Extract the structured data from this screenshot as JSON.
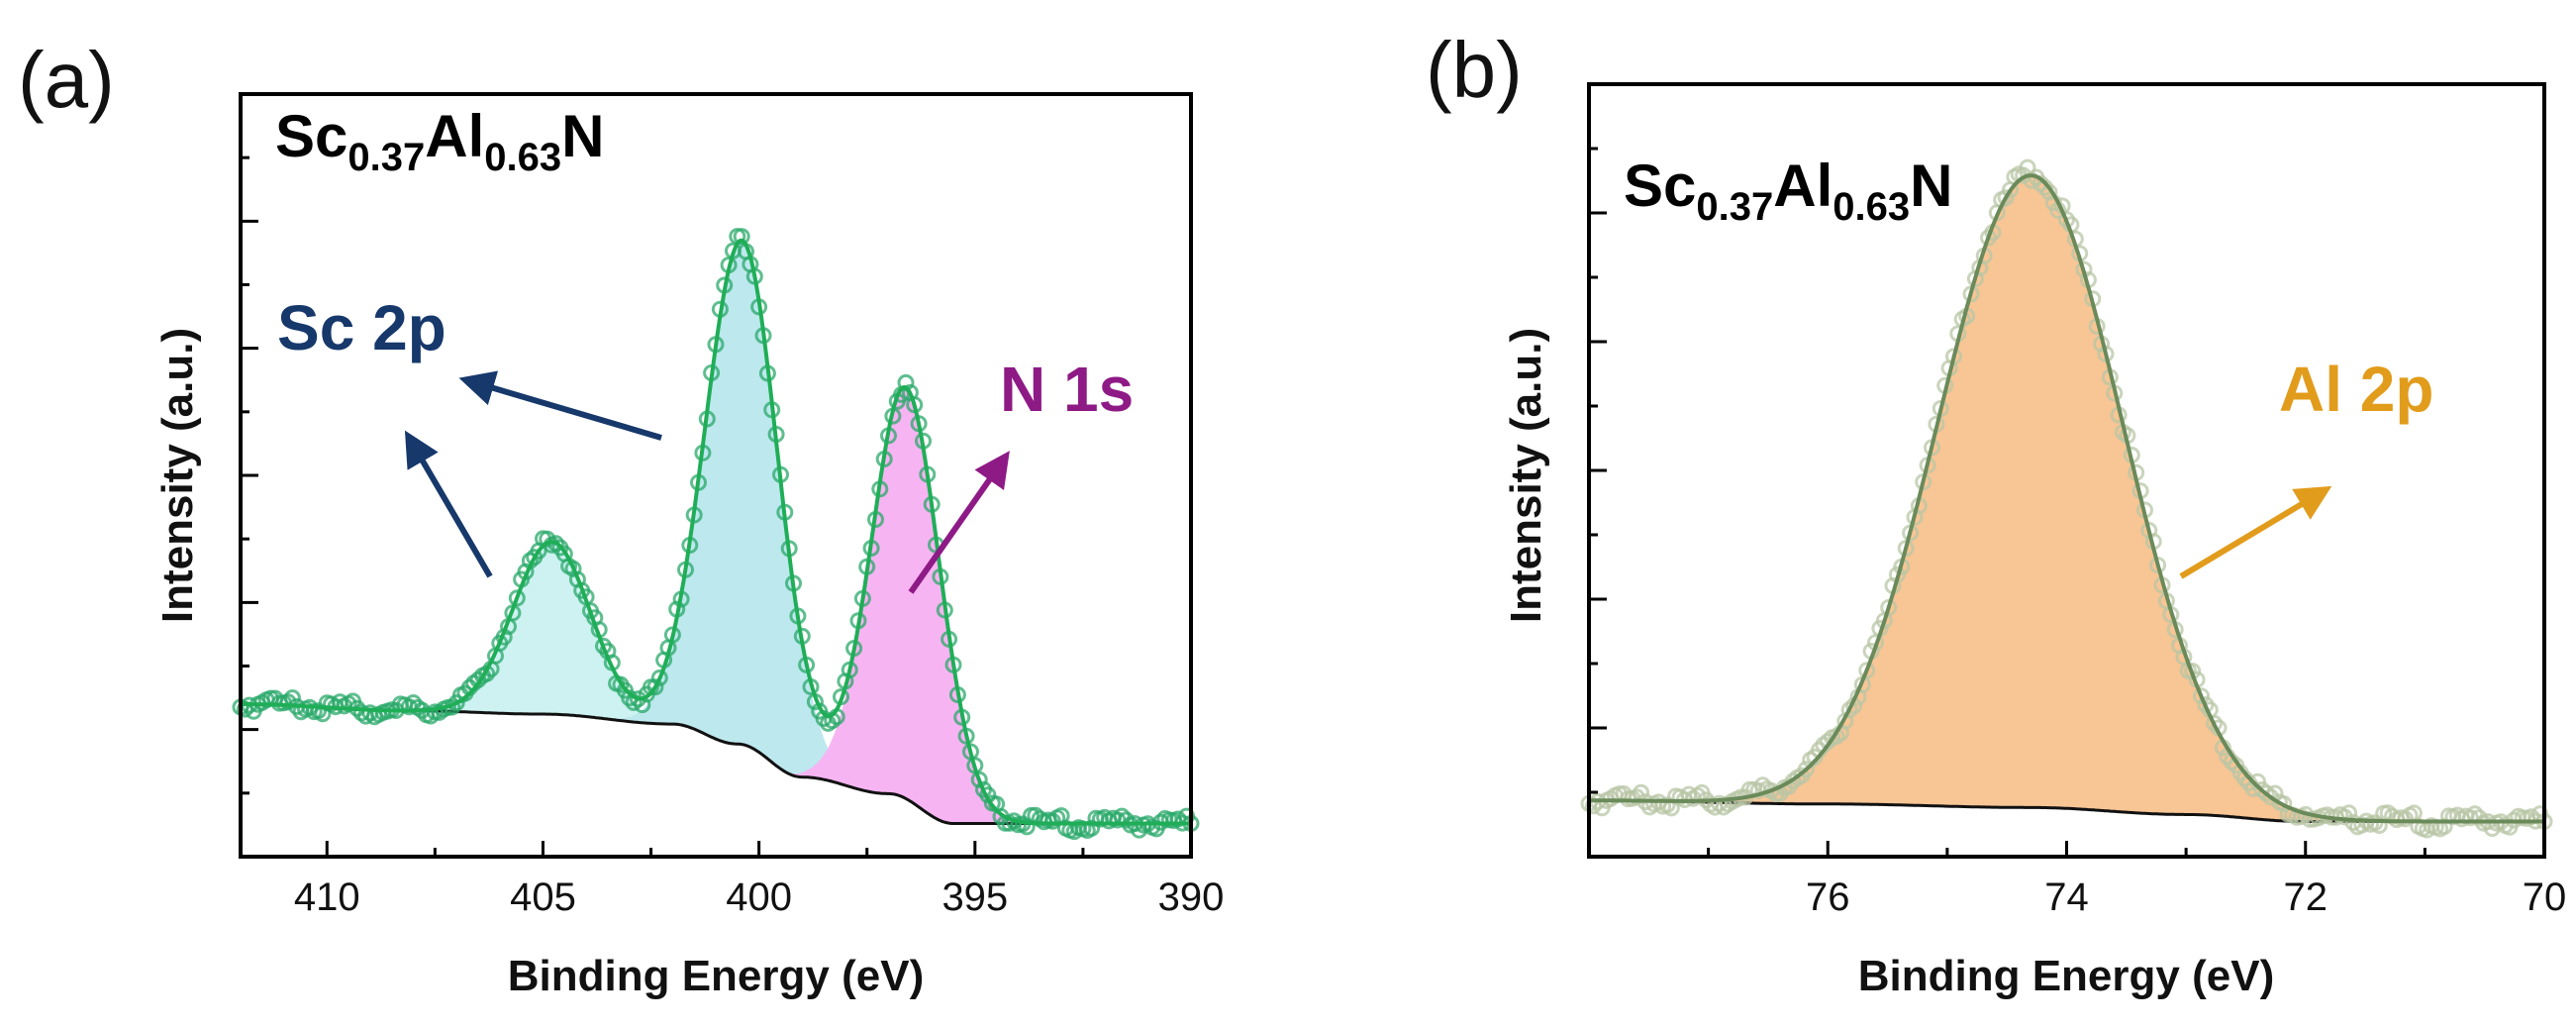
{
  "chart_data": [
    {
      "panel_label": "(a)",
      "type": "line",
      "title": "",
      "sample_formula": {
        "el1": "Sc",
        "sub1": "0.37",
        "el2": "Al",
        "sub2": "0.63",
        "el3": "N"
      },
      "xlabel": "Binding Energy (eV)",
      "ylabel": "Intensity (a.u.)",
      "xlim": [
        412,
        390
      ],
      "ylim": [
        -0.05,
        1.1
      ],
      "x_ticks": [
        410,
        405,
        400,
        395,
        390
      ],
      "x_tick_labels": [
        "410",
        "405",
        "400",
        "395",
        "390"
      ],
      "y_tick_labels_shown": false,
      "grid": false,
      "background": {
        "type": "shirley",
        "points": [
          [
            412,
            0.18
          ],
          [
            408,
            0.17
          ],
          [
            405,
            0.165
          ],
          [
            402,
            0.15
          ],
          [
            400.5,
            0.12
          ],
          [
            399,
            0.07
          ],
          [
            397,
            0.045
          ],
          [
            395.5,
            0.0
          ],
          [
            390,
            0.0
          ]
        ]
      },
      "components": [
        {
          "name": "Sc 2p",
          "center": 404.8,
          "height": 0.26,
          "sigma": 0.9,
          "color": "#cdf2f1"
        },
        {
          "name": "Sc 2p",
          "center": 400.4,
          "height": 0.76,
          "sigma": 0.85,
          "color": "#bde8ee"
        },
        {
          "name": "N 1s",
          "center": 396.6,
          "height": 0.62,
          "sigma": 0.8,
          "color": "#f7b4f2"
        }
      ],
      "data_marker_color": "#2aa86a",
      "fit_line_color": "#1fae57",
      "annotations": [
        {
          "text": "Sc 2p",
          "color": "#16386b"
        },
        {
          "text": "N 1s",
          "color": "#8e1a86"
        }
      ]
    },
    {
      "panel_label": "(b)",
      "type": "line",
      "title": "",
      "sample_formula": {
        "el1": "Sc",
        "sub1": "0.37",
        "el2": "Al",
        "sub2": "0.63",
        "el3": "N"
      },
      "xlabel": "Binding Energy (eV)",
      "ylabel": "Intensity (a.u.)",
      "xlim": [
        78,
        70
      ],
      "ylim": [
        -0.05,
        1.05
      ],
      "x_ticks": [
        76,
        74,
        72,
        70
      ],
      "x_tick_labels": [
        "76",
        "74",
        "72",
        "70"
      ],
      "y_tick_labels_shown": false,
      "grid": false,
      "background": {
        "type": "shirley",
        "points": [
          [
            78,
            0.03
          ],
          [
            76,
            0.025
          ],
          [
            74.3,
            0.02
          ],
          [
            73,
            0.01
          ],
          [
            72,
            0.0
          ],
          [
            70,
            0.0
          ]
        ]
      },
      "components": [
        {
          "name": "Al 2p",
          "center": 74.3,
          "height": 0.9,
          "sigma": 0.78,
          "color": "#f8c595"
        }
      ],
      "data_marker_color": "#b8c6a6",
      "fit_line_color": "#6a8a5a",
      "annotations": [
        {
          "text": "Al 2p",
          "color": "#e29c1c"
        }
      ]
    }
  ]
}
